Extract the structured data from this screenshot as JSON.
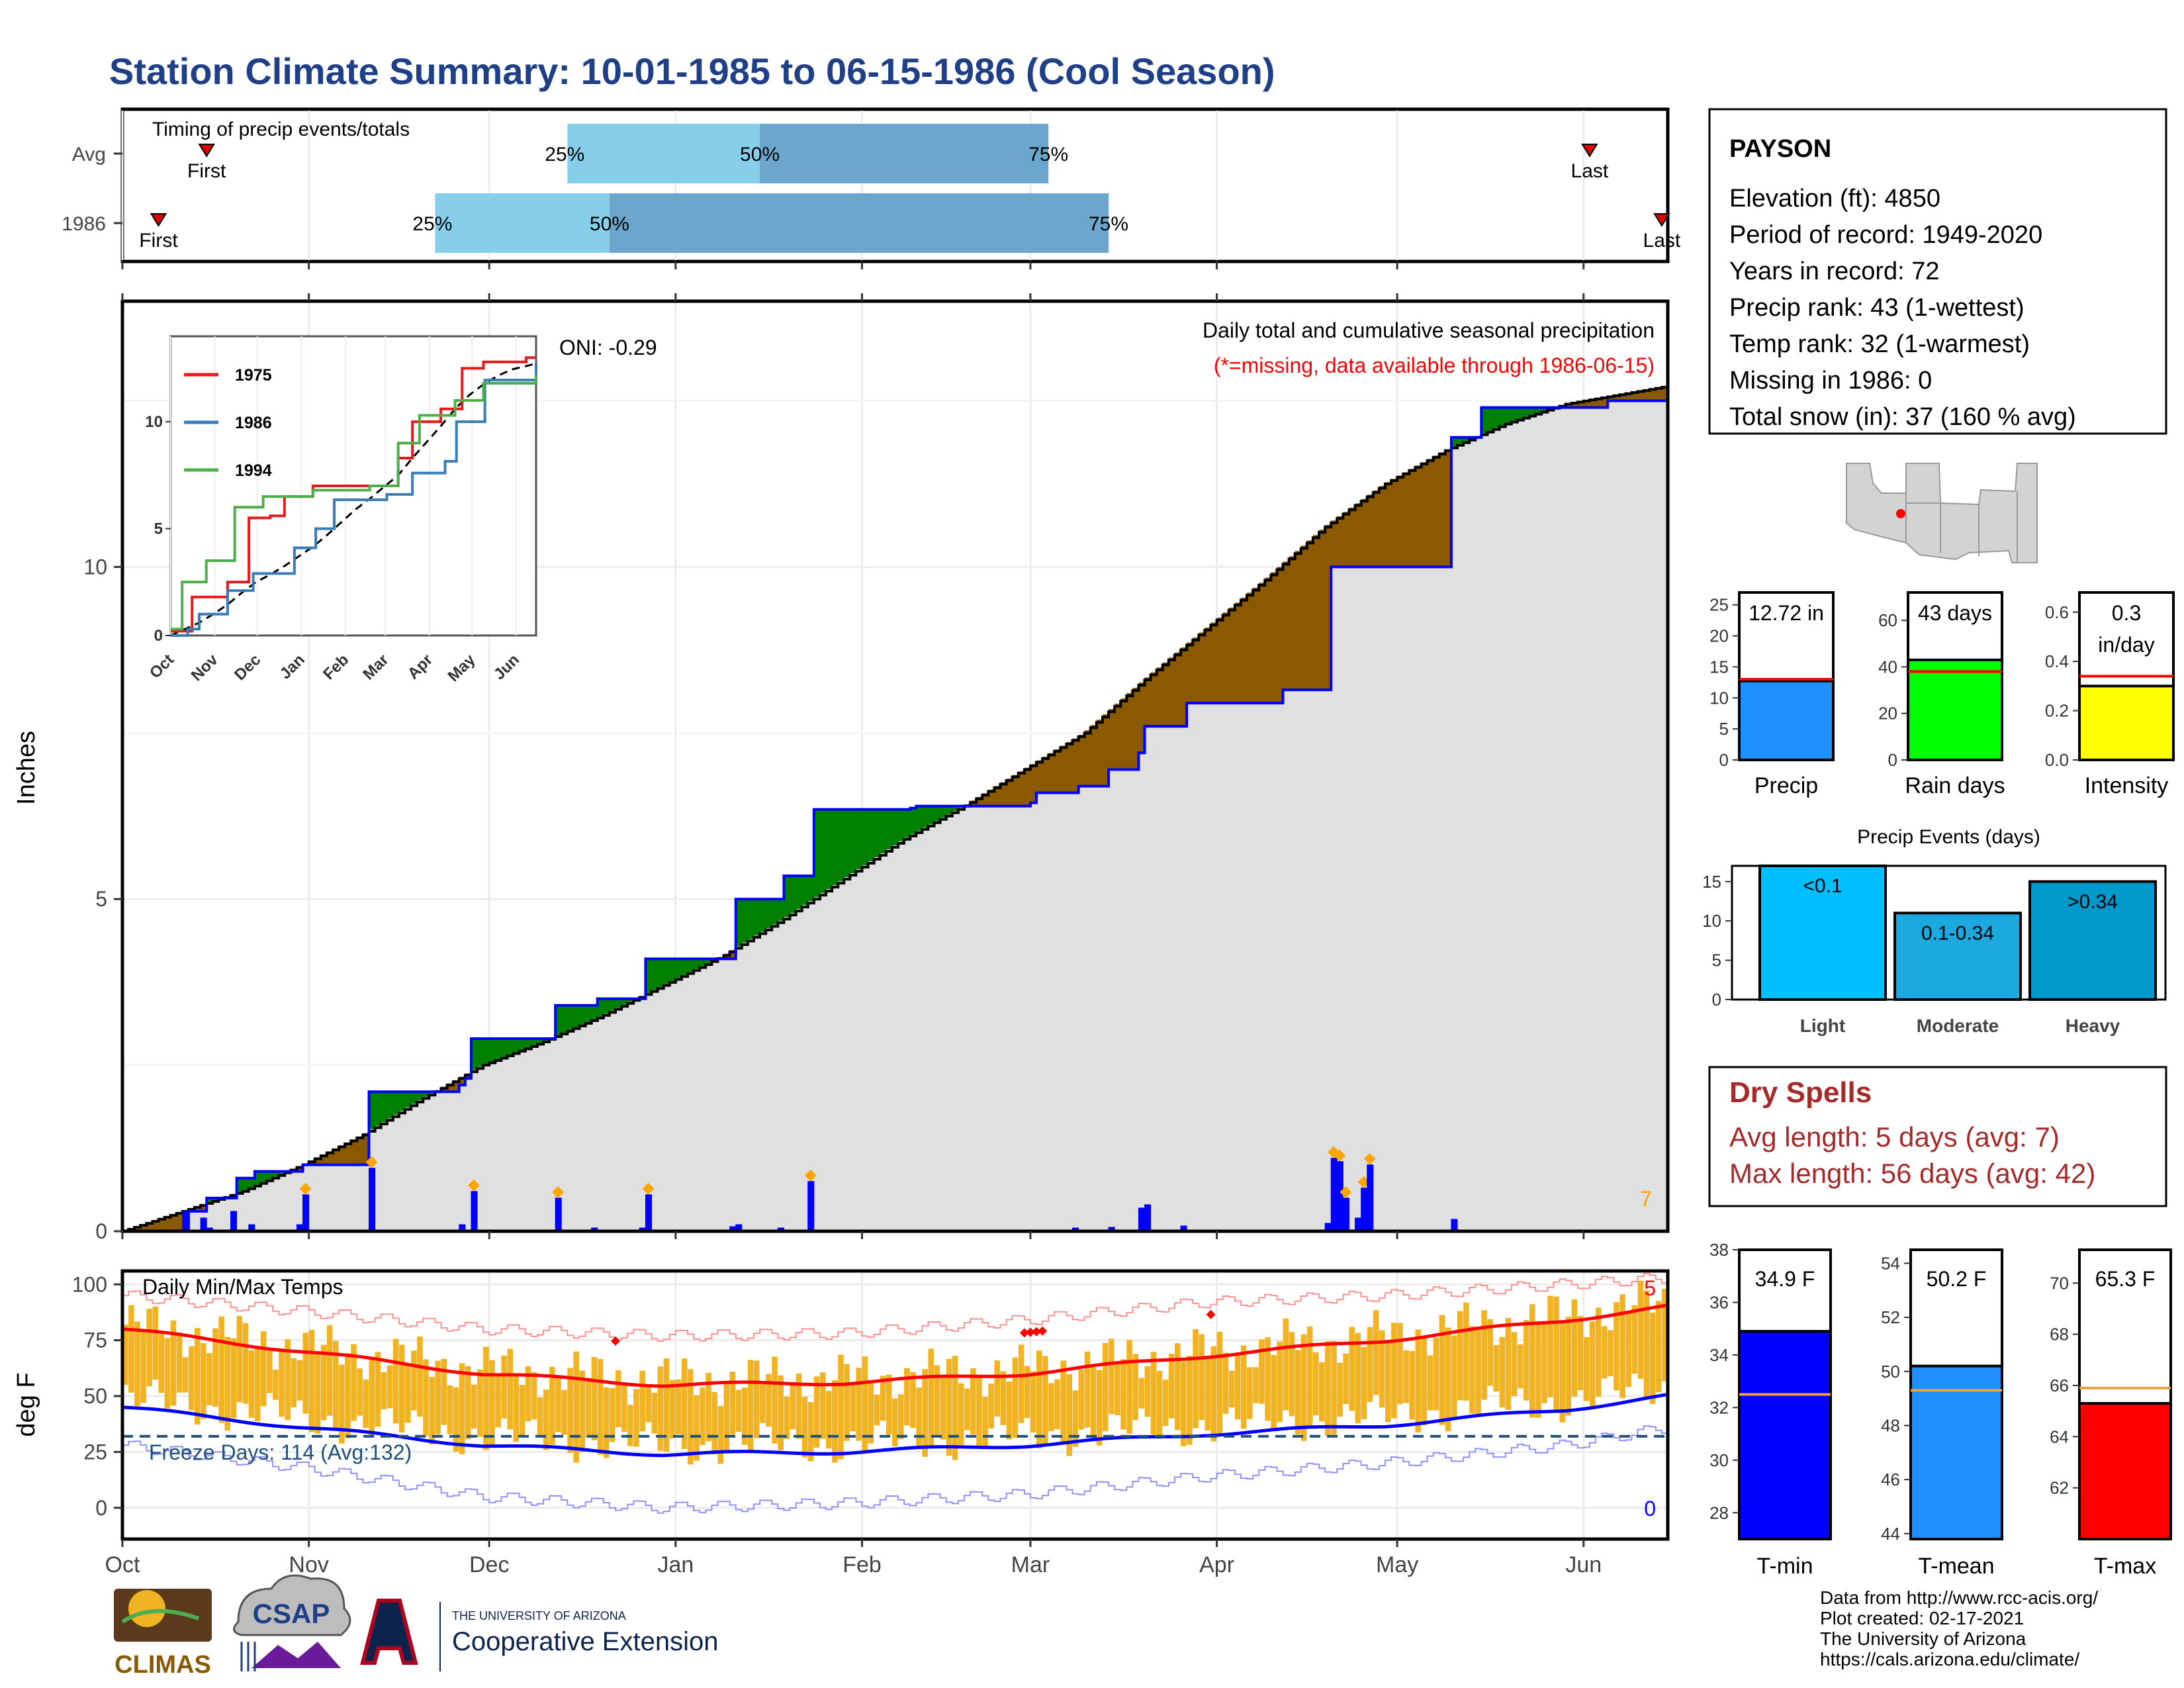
{
  "title": "Station Climate Summary: 10-01-1985 to 06-15-1986 (Cool Season)",
  "months": [
    "Oct",
    "Nov",
    "Dec",
    "Jan",
    "Feb",
    "Mar",
    "Apr",
    "May",
    "Jun"
  ],
  "timing": {
    "title": "Timing of precip events/totals",
    "rows": [
      {
        "name": "Avg",
        "first_day": 14,
        "last_day": 244,
        "q25": 74,
        "q50": 106,
        "q75": 154,
        "q25_label": "25%",
        "q50_label": "50%",
        "q75_label": "75%",
        "first_label": "First",
        "last_label": "Last"
      },
      {
        "name": "1986",
        "first_day": 6,
        "last_day": 256,
        "q25": 52,
        "q50": 81,
        "q75": 164,
        "q25_label": "25%",
        "q50_label": "50%",
        "q75_label": "75%",
        "first_label": "First",
        "last_label": "Last"
      }
    ]
  },
  "precip_panel": {
    "ylabel": "Inches",
    "y_ticks": [
      0,
      5,
      10
    ],
    "ylim": [
      0,
      14
    ],
    "title": "Daily total and cumulative seasonal precipitation",
    "subtitle": "(*=missing, data available through 1986-06-15)",
    "oni": "ONI: -0.29",
    "corner_count": "7",
    "colors": {
      "above": "#008000",
      "below": "#8B5A00",
      "avg_fill": "#e0e0e0",
      "line": "#0000ff",
      "subtitle": "#ff0000",
      "marker": "#FFA500",
      "corner": "#FFA500"
    }
  },
  "inset": {
    "y_ticks": [
      0,
      5,
      10
    ],
    "ylim": [
      0,
      14
    ],
    "months": [
      "Oct",
      "Nov",
      "Dec",
      "Jan",
      "Feb",
      "Mar",
      "Apr",
      "May",
      "Jun"
    ],
    "series": [
      {
        "name": "1975",
        "color": "#e41a1c"
      },
      {
        "name": "1986",
        "color": "#377eb8"
      },
      {
        "name": "1994",
        "color": "#4daf4a"
      }
    ]
  },
  "temp_panel": {
    "ylabel": "deg F",
    "title": "Daily Min/Max Temps",
    "y_ticks": [
      0,
      25,
      50,
      75,
      100
    ],
    "ylim": [
      -14,
      106
    ],
    "freeze_label": "Freeze Days: 114 (Avg:132)",
    "max_count": "5",
    "min_count": "0",
    "freeze_line": 32,
    "colors": {
      "bars": "#F0B323",
      "max_avg": "#ff0000",
      "min_avg": "#0000ff",
      "freeze": "#1F4E79",
      "record_max": "#ff9090",
      "record_min": "#9090ff"
    }
  },
  "station": {
    "name": "PAYSON",
    "lines": [
      "Elevation (ft): 4850",
      "Period of record: 1949-2020",
      "Years in record: 72",
      "Precip rank: 43 (1-wettest)",
      "Temp rank: 32 (1-warmest)",
      "Missing in 1986: 0",
      "Total snow (in): 37 (160 % avg)"
    ]
  },
  "mini_bars": [
    {
      "label": "Precip",
      "value": 12.72,
      "avg": 13.0,
      "value_label": "12.72 in",
      "ylim": [
        0,
        27
      ],
      "ticks": [
        0,
        5,
        10,
        15,
        20,
        25
      ],
      "color": "#1E90FF",
      "avg_color": "#ff0000"
    },
    {
      "label": "Rain days",
      "value": 43,
      "avg": 38,
      "value_label": "43 days",
      "ylim": [
        0,
        72
      ],
      "ticks": [
        0,
        20,
        40,
        60
      ],
      "color": "#00FF00",
      "avg_color": "#ff0000"
    },
    {
      "label": "Intensity",
      "value": 0.3,
      "avg": 0.34,
      "value_label_1": "0.3",
      "value_label_2": "in/day",
      "ylim": [
        0,
        0.68
      ],
      "ticks": [
        "0.0",
        "0.2",
        "0.4",
        "0.6"
      ],
      "color": "#FFFF00",
      "avg_color": "#ff0000"
    }
  ],
  "precip_events": {
    "title": "Precip Events (days)",
    "ylim": [
      0,
      17
    ],
    "ticks": [
      0,
      5,
      10,
      15
    ],
    "categories": [
      "Light",
      "Moderate",
      "Heavy"
    ],
    "values": [
      17,
      11,
      15
    ],
    "bar_labels": [
      "<0.1",
      "0.1-0.34",
      ">0.34"
    ],
    "colors": [
      "#00BFFF",
      "#1CA9E0",
      "#0099CC"
    ]
  },
  "dry_spells": {
    "title": "Dry Spells",
    "avg_line": "Avg length: 5 days (avg: 7)",
    "max_line": "Max length: 56 days (avg: 42)",
    "color": "#A52A2A"
  },
  "temp_bars": [
    {
      "label": "T-min",
      "value": 34.9,
      "avg": 32.5,
      "value_label": "34.9 F",
      "ylim": [
        27,
        38
      ],
      "ticks": [
        28,
        30,
        32,
        34,
        36,
        38
      ],
      "color": "#0000FF"
    },
    {
      "label": "T-mean",
      "value": 50.2,
      "avg": 49.3,
      "value_label": "50.2 F",
      "ylim": [
        43.8,
        54.5
      ],
      "ticks": [
        44,
        46,
        48,
        50,
        52,
        54
      ],
      "color": "#1E90FF"
    },
    {
      "label": "T-max",
      "value": 65.3,
      "avg": 65.9,
      "value_label": "65.3 F",
      "ylim": [
        60,
        71.3
      ],
      "ticks": [
        62,
        64,
        66,
        68,
        70
      ],
      "color": "#FF0000"
    }
  ],
  "footer": {
    "lines": [
      "Data from http://www.rcc-acis.org/",
      "Plot created: 02-17-2021",
      "The University of Arizona",
      "https://cals.arizona.edu/climate/"
    ]
  },
  "logos": {
    "climas": "CLIMAS",
    "csap": "CSAP",
    "ua_top": "THE UNIVERSITY OF ARIZONA",
    "ua_main": "Cooperative Extension"
  },
  "chart_data": [
    {
      "type": "area",
      "title": "Daily total and cumulative seasonal precipitation",
      "ylabel": "Inches",
      "ylim": [
        0,
        14
      ],
      "x_unit": "day of season (0 = 1985-10-01)",
      "series": [
        {
          "name": "1986",
          "x": [
            0,
            10,
            11,
            13,
            14,
            18,
            19,
            21,
            22,
            29,
            30,
            40,
            41,
            55,
            56,
            57,
            58,
            71,
            72,
            78,
            79,
            86,
            87,
            101,
            102,
            109,
            110,
            114,
            115,
            130,
            131,
            132,
            133,
            151,
            152,
            158,
            159,
            159.5,
            164,
            165,
            169,
            170,
            176,
            177,
            192,
            193,
            200,
            201,
            221,
            226,
            247,
            257
          ],
          "y": [
            0,
            0,
            0.3,
            0.3,
            0.5,
            0.5,
            0.8,
            0.8,
            0.9,
            0.9,
            1.0,
            1.0,
            2.1,
            2.1,
            2.2,
            2.3,
            2.9,
            2.9,
            3.4,
            3.4,
            3.5,
            3.5,
            4.1,
            4.1,
            5.0,
            5.0,
            5.35,
            5.35,
            6.35,
            6.35,
            6.37,
            6.4,
            6.4,
            6.45,
            6.6,
            6.6,
            6.7,
            6.7,
            6.95,
            6.95,
            7.2,
            7.6,
            7.6,
            7.95,
            7.95,
            8.15,
            8.15,
            10.0,
            11.95,
            12.4,
            12.5,
            12.72
          ]
        },
        {
          "name": "Avg",
          "x": [
            0,
            10,
            20,
            30,
            40,
            50,
            60,
            70,
            80,
            90,
            100,
            110,
            120,
            130,
            140,
            150,
            160,
            170,
            180,
            190,
            200,
            210,
            220,
            230,
            240,
            257
          ],
          "y": [
            0,
            0.3,
            0.6,
            1.0,
            1.45,
            2.0,
            2.5,
            2.85,
            3.25,
            3.7,
            4.15,
            4.7,
            5.3,
            5.9,
            6.4,
            6.95,
            7.5,
            8.3,
            9.05,
            9.8,
            10.6,
            11.25,
            11.75,
            12.15,
            12.45,
            12.72
          ]
        }
      ],
      "daily_precip": {
        "x": [
          10,
          13,
          14,
          18,
          21,
          29,
          30,
          40,
          41,
          55,
          56,
          58,
          71,
          72,
          78,
          86,
          87,
          101,
          102,
          109,
          114,
          130,
          151,
          158,
          164,
          169,
          170,
          176,
          192,
          200,
          201,
          202,
          203,
          205,
          206,
          207,
          221,
          247
        ],
        "y": [
          0.3,
          0.2,
          0.05,
          0.3,
          0.1,
          0.1,
          0.55,
          0.02,
          0.95,
          0.02,
          0.1,
          0.6,
          0.02,
          0.5,
          0.05,
          0.05,
          0.55,
          0.07,
          0.1,
          0.05,
          0.75,
          0.02,
          0.02,
          0.05,
          0.06,
          0.35,
          0.4,
          0.08,
          0.02,
          0.12,
          1.1,
          1.05,
          0.5,
          0.2,
          0.65,
          1.0,
          0.18,
          0.02
        ]
      }
    },
    {
      "type": "line",
      "title": "Daily Min/Max Temps",
      "ylabel": "deg F",
      "ylim": [
        -14,
        106
      ],
      "x_unit": "day of season (0 = 1985-10-01)",
      "series": [
        {
          "name": "Avg max",
          "x": [
            0,
            30,
            60,
            90,
            120,
            150,
            180,
            210,
            240,
            257
          ],
          "y": [
            80,
            70,
            60,
            55,
            56,
            60,
            68,
            75,
            84,
            90
          ]
        },
        {
          "name": "Avg min",
          "x": [
            0,
            30,
            60,
            90,
            120,
            150,
            180,
            210,
            240,
            257
          ],
          "y": [
            45,
            36,
            28,
            24,
            25,
            28,
            33,
            37,
            44,
            50
          ]
        },
        {
          "name": "Record max",
          "x": [
            0,
            30,
            60,
            90,
            120,
            150,
            180,
            210,
            240,
            257
          ],
          "y": [
            95,
            88,
            80,
            77,
            78,
            84,
            92,
            95,
            100,
            103
          ]
        },
        {
          "name": "Record min",
          "x": [
            0,
            30,
            60,
            90,
            120,
            150,
            180,
            210,
            240,
            257
          ],
          "y": [
            28,
            18,
            5,
            0,
            2,
            6,
            14,
            20,
            28,
            36
          ]
        }
      ]
    },
    {
      "type": "bar",
      "title": "Precip Events (days)",
      "categories": [
        "Light",
        "Moderate",
        "Heavy"
      ],
      "values": [
        17,
        11,
        15
      ],
      "ylim": [
        0,
        17
      ]
    },
    {
      "type": "bar",
      "categories": [
        "Precip",
        "Rain days",
        "Intensity"
      ],
      "values": [
        12.72,
        43,
        0.3
      ]
    },
    {
      "type": "bar",
      "categories": [
        "T-min",
        "T-mean",
        "T-max"
      ],
      "values": [
        34.9,
        50.2,
        65.3
      ]
    }
  ]
}
